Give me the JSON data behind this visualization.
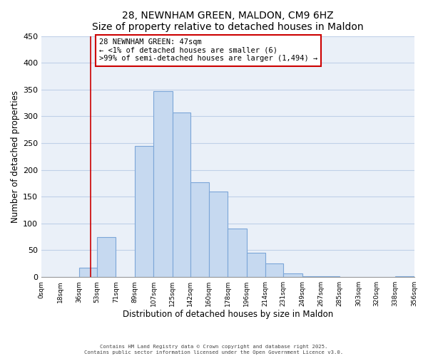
{
  "title": "28, NEWNHAM GREEN, MALDON, CM9 6HZ",
  "subtitle": "Size of property relative to detached houses in Maldon",
  "xlabel": "Distribution of detached houses by size in Maldon",
  "ylabel": "Number of detached properties",
  "bar_left_edges": [
    0,
    18,
    36,
    53,
    71,
    89,
    107,
    125,
    142,
    160,
    178,
    196,
    214,
    231,
    249,
    267,
    285,
    303,
    320,
    338
  ],
  "bar_widths": [
    18,
    18,
    17,
    18,
    18,
    18,
    18,
    17,
    18,
    18,
    18,
    18,
    17,
    18,
    18,
    18,
    18,
    17,
    18,
    18
  ],
  "bar_heights": [
    0,
    0,
    17,
    75,
    0,
    245,
    347,
    307,
    177,
    159,
    91,
    45,
    25,
    7,
    2,
    1,
    0,
    0,
    0,
    2
  ],
  "bar_color": "#c6d9f0",
  "bar_edge_color": "#7ca6d8",
  "property_line_x": 47,
  "property_line_color": "#cc0000",
  "annotation_title": "28 NEWNHAM GREEN: 47sqm",
  "annotation_line1": "← <1% of detached houses are smaller (6)",
  "annotation_line2": ">99% of semi-detached houses are larger (1,494) →",
  "annotation_box_color": "#ffffff",
  "annotation_box_edge": "#cc0000",
  "x_tick_labels": [
    "0sqm",
    "18sqm",
    "36sqm",
    "53sqm",
    "71sqm",
    "89sqm",
    "107sqm",
    "125sqm",
    "142sqm",
    "160sqm",
    "178sqm",
    "196sqm",
    "214sqm",
    "231sqm",
    "249sqm",
    "267sqm",
    "285sqm",
    "303sqm",
    "320sqm",
    "338sqm",
    "356sqm"
  ],
  "x_tick_positions": [
    0,
    18,
    36,
    53,
    71,
    89,
    107,
    125,
    142,
    160,
    178,
    196,
    214,
    231,
    249,
    267,
    285,
    303,
    320,
    338,
    356
  ],
  "ylim": [
    0,
    450
  ],
  "xlim": [
    0,
    356
  ],
  "yticks": [
    0,
    50,
    100,
    150,
    200,
    250,
    300,
    350,
    400,
    450
  ],
  "grid_color": "#c0d0e8",
  "background_color": "#eaf0f8",
  "footnote_line1": "Contains HM Land Registry data © Crown copyright and database right 2025.",
  "footnote_line2": "Contains public sector information licensed under the Open Government Licence v3.0."
}
